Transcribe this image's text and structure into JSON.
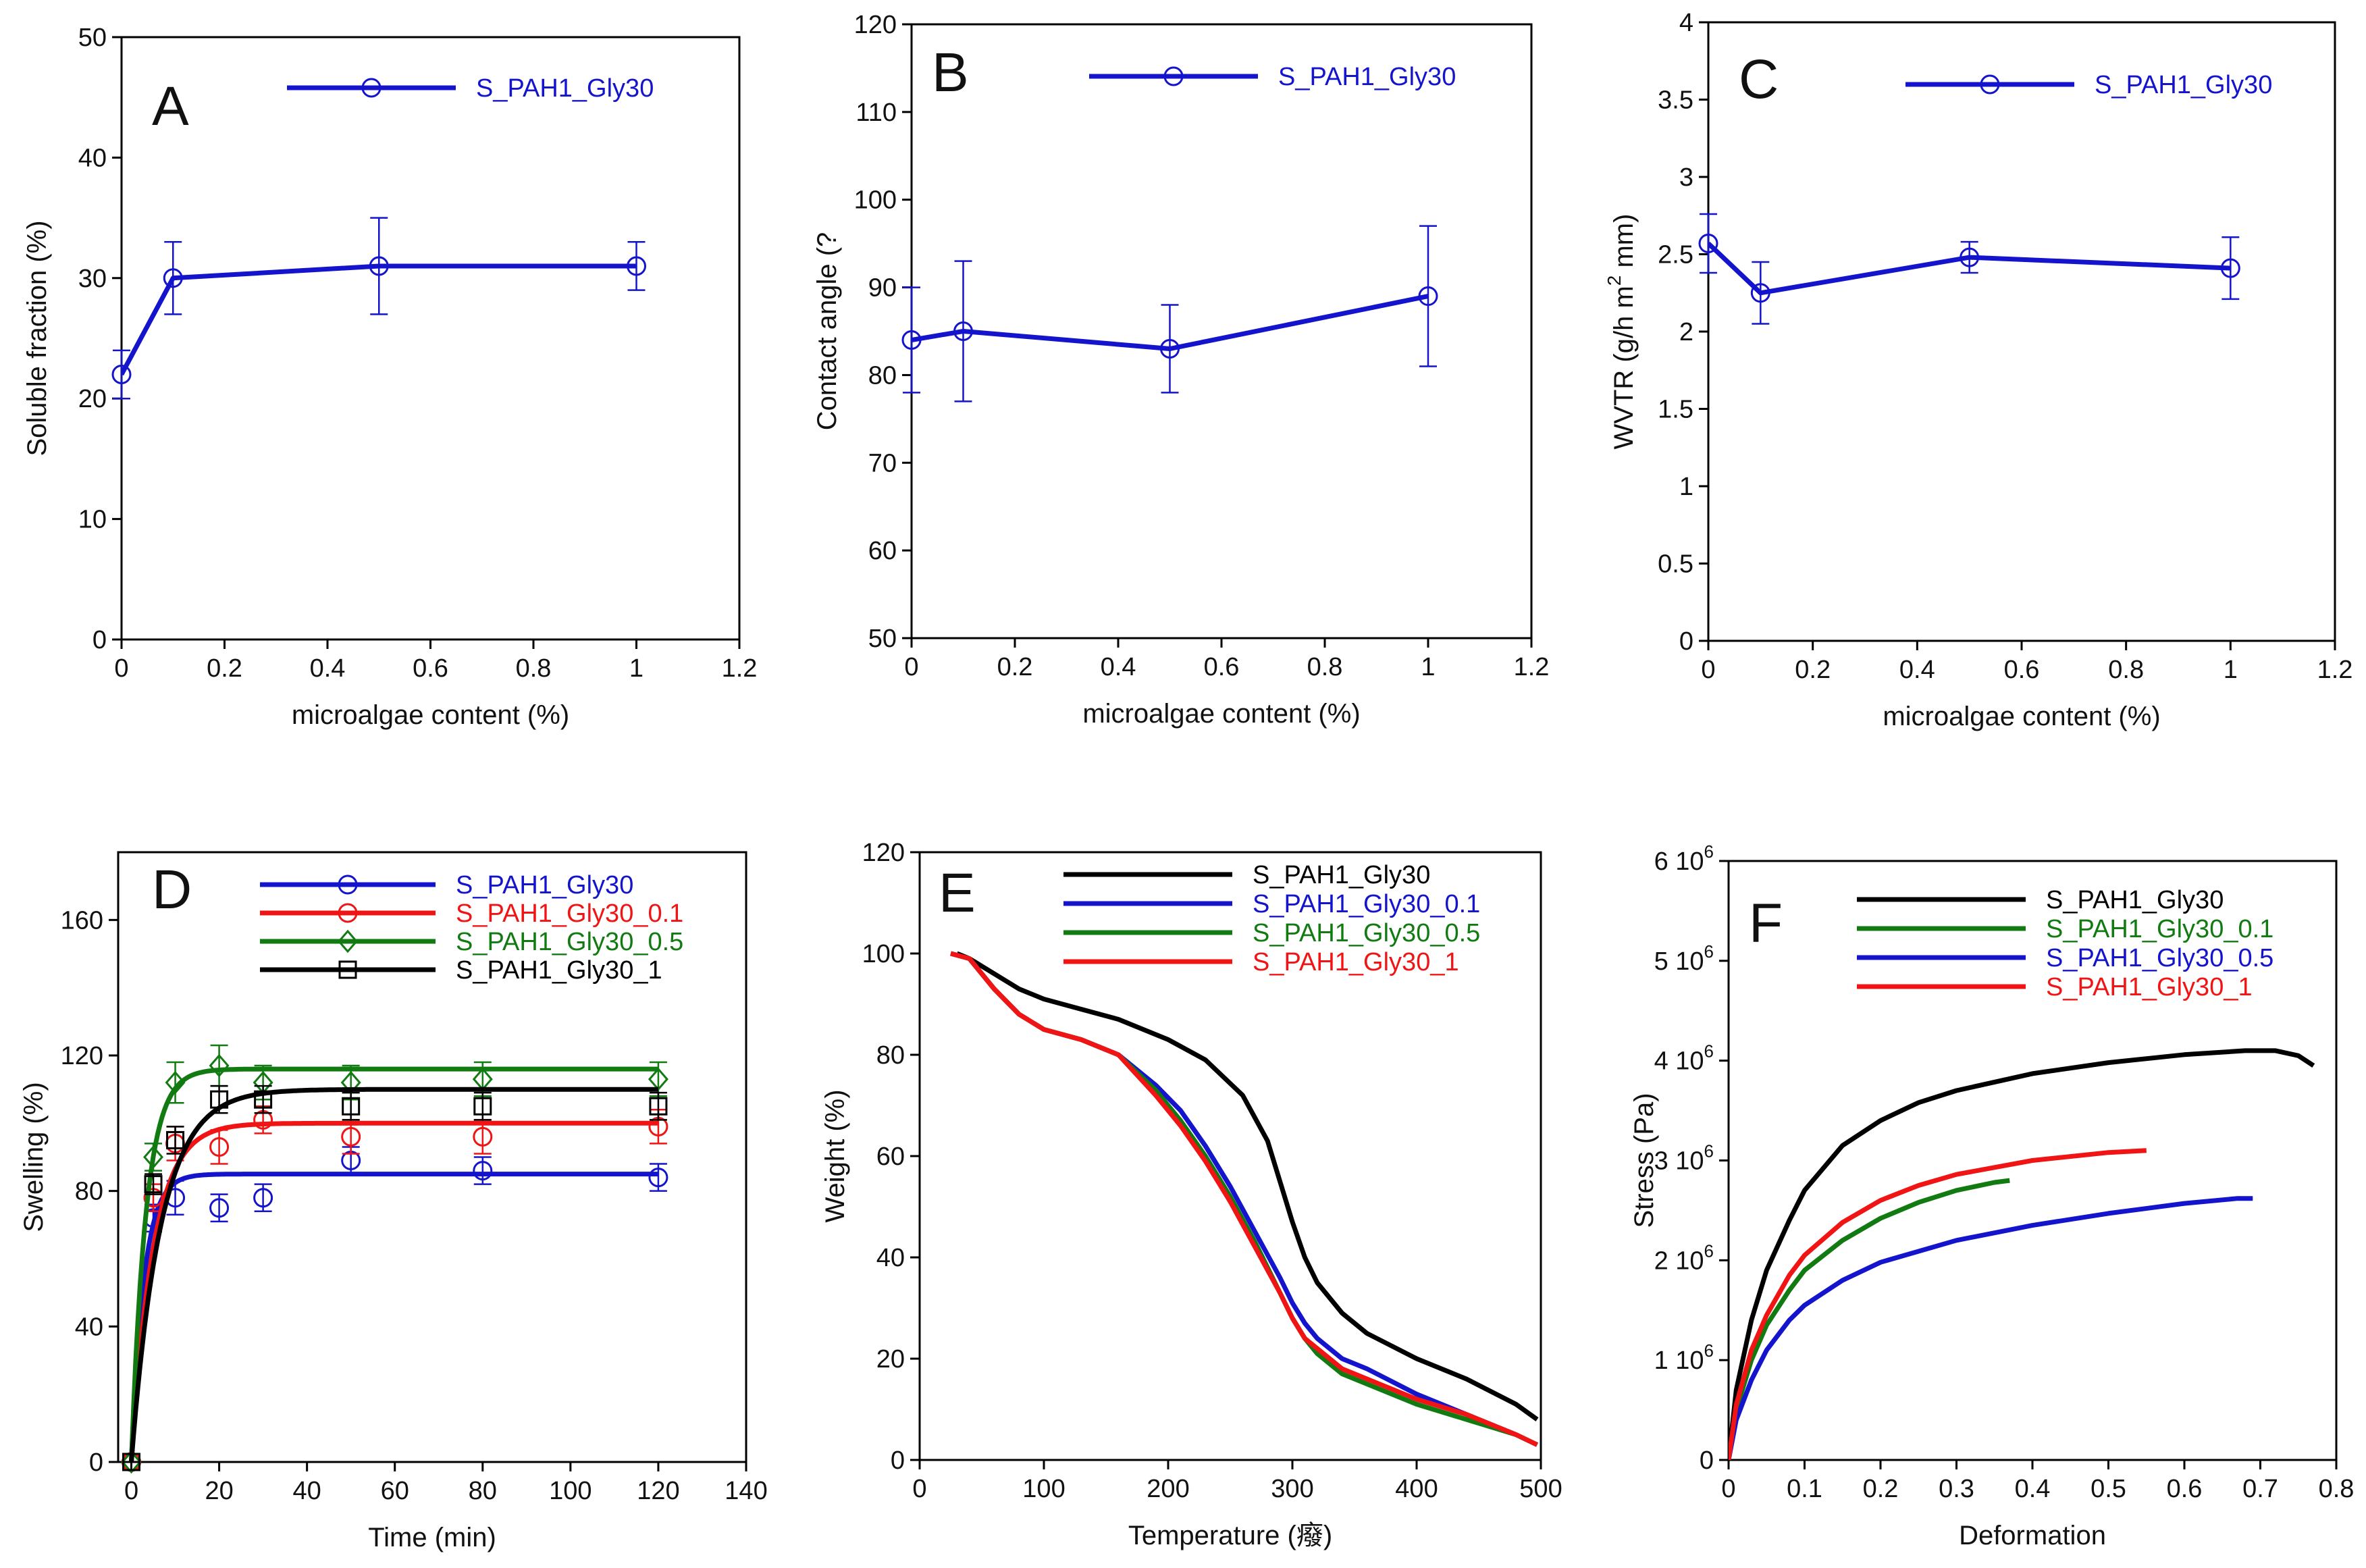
{
  "figure": {
    "panels": [
      "A",
      "B",
      "C",
      "D",
      "E",
      "F"
    ]
  },
  "colors": {
    "blue": "#1414cc",
    "red": "#f01414",
    "green": "#117a11",
    "black": "#000000"
  },
  "chart_data": [
    {
      "id": "A",
      "type": "line",
      "panel_label": "A",
      "xlabel": "microalgae content (%)",
      "ylabel": "Soluble fraction (%)",
      "xlim": [
        0,
        1.2
      ],
      "ylim": [
        0,
        50
      ],
      "xticks": [
        0,
        0.2,
        0.4,
        0.6,
        0.8,
        1,
        1.2
      ],
      "xtick_labels": [
        "0",
        "0.2",
        "0.4",
        "0.6",
        "0.8",
        "1",
        "1.2"
      ],
      "yticks": [
        0,
        10,
        20,
        30,
        40,
        50
      ],
      "ytick_labels": [
        "0",
        "10",
        "20",
        "30",
        "40",
        "50"
      ],
      "legend_position": "top-right",
      "series": [
        {
          "name": "S_PAH1_Gly30",
          "color": "#1414cc",
          "marker": "circle",
          "x": [
            0,
            0.1,
            0.5,
            1
          ],
          "y": [
            22,
            30,
            31,
            31
          ],
          "err": [
            2,
            3,
            4,
            2
          ]
        }
      ]
    },
    {
      "id": "B",
      "type": "line",
      "panel_label": "B",
      "xlabel": "microalgae content (%)",
      "ylabel": "Contact angle (?",
      "xlim": [
        0,
        1.2
      ],
      "ylim": [
        50,
        120
      ],
      "xticks": [
        0,
        0.2,
        0.4,
        0.6,
        0.8,
        1,
        1.2
      ],
      "xtick_labels": [
        "0",
        "0.2",
        "0.4",
        "0.6",
        "0.8",
        "1",
        "1.2"
      ],
      "yticks": [
        50,
        60,
        70,
        80,
        90,
        100,
        110,
        120
      ],
      "ytick_labels": [
        "50",
        "60",
        "70",
        "80",
        "90",
        "100",
        "110",
        "120"
      ],
      "legend_position": "top-right",
      "series": [
        {
          "name": "S_PAH1_Gly30",
          "color": "#1414cc",
          "marker": "circle",
          "x": [
            0,
            0.1,
            0.5,
            1
          ],
          "y": [
            84,
            85,
            83,
            89
          ],
          "err": [
            6,
            8,
            5,
            8
          ]
        }
      ]
    },
    {
      "id": "C",
      "type": "line",
      "panel_label": "C",
      "xlabel": "microalgae content (%)",
      "ylabel": "WVTR (g/h m",
      "ylabel_sup": "2",
      "ylabel_tail": " mm)",
      "xlim": [
        0,
        1.2
      ],
      "ylim": [
        0,
        4
      ],
      "xticks": [
        0,
        0.2,
        0.4,
        0.6,
        0.8,
        1,
        1.2
      ],
      "xtick_labels": [
        "0",
        "0.2",
        "0.4",
        "0.6",
        "0.8",
        "1",
        "1.2"
      ],
      "yticks": [
        0,
        0.5,
        1,
        1.5,
        2,
        2.5,
        3,
        3.5,
        4
      ],
      "ytick_labels": [
        "0",
        "0.5",
        "1",
        "1.5",
        "2",
        "2.5",
        "3",
        "3.5",
        "4"
      ],
      "legend_position": "top-right",
      "series": [
        {
          "name": "S_PAH1_Gly30",
          "color": "#1414cc",
          "marker": "circle",
          "x": [
            0,
            0.1,
            0.5,
            1
          ],
          "y": [
            2.57,
            2.25,
            2.48,
            2.41
          ],
          "err": [
            0.19,
            0.2,
            0.1,
            0.2
          ]
        }
      ]
    },
    {
      "id": "D",
      "type": "scatter",
      "panel_label": "D",
      "xlabel": "Time (min)",
      "ylabel": "Swelling (%)",
      "xlim": [
        -3,
        140
      ],
      "ylim": [
        0,
        180
      ],
      "xticks": [
        0,
        20,
        40,
        60,
        80,
        100,
        120,
        140
      ],
      "xtick_labels": [
        "0",
        "20",
        "40",
        "60",
        "80",
        "100",
        "120",
        "140"
      ],
      "yticks": [
        0,
        40,
        80,
        120,
        160
      ],
      "ytick_labels": [
        "0",
        "40",
        "80",
        "120",
        "160"
      ],
      "legend_position": "top-right",
      "series": [
        {
          "name": "S_PAH1_Gly30",
          "color": "#1414cc",
          "marker": "circle",
          "x": [
            0,
            5,
            10,
            20,
            30,
            50,
            80,
            120
          ],
          "y": [
            0,
            72,
            78,
            75,
            78,
            89,
            86,
            84
          ],
          "err": [
            0,
            4,
            5,
            4,
            4,
            4,
            4,
            4
          ],
          "fit": {
            "ymax": 85,
            "k": 0.35
          }
        },
        {
          "name": "S_PAH1_Gly30_0.1",
          "color": "#f01414",
          "marker": "circle",
          "x": [
            0,
            5,
            10,
            20,
            30,
            50,
            80,
            120
          ],
          "y": [
            0,
            78,
            94,
            93,
            101,
            96,
            96,
            99
          ],
          "err": [
            0,
            4,
            5,
            5,
            4,
            5,
            5,
            5
          ],
          "fit": {
            "ymax": 100,
            "k": 0.2
          }
        },
        {
          "name": "S_PAH1_Gly30_0.5",
          "color": "#117a11",
          "marker": "diamond",
          "x": [
            0,
            5,
            10,
            20,
            30,
            50,
            80,
            120
          ],
          "y": [
            0,
            90,
            112,
            117,
            112,
            112,
            113,
            113
          ],
          "err": [
            0,
            4,
            6,
            6,
            5,
            5,
            5,
            5
          ],
          "fit": {
            "ymax": 116,
            "k": 0.3
          }
        },
        {
          "name": "S_PAH1_Gly30_1",
          "color": "#000000",
          "marker": "square",
          "x": [
            0,
            5,
            10,
            20,
            30,
            50,
            80,
            120
          ],
          "y": [
            0,
            82,
            95,
            107,
            107,
            105,
            105,
            105
          ],
          "err": [
            0,
            3,
            4,
            4,
            4,
            4,
            4,
            4
          ],
          "fit": {
            "ymax": 110,
            "k": 0.15
          }
        }
      ]
    },
    {
      "id": "E",
      "type": "line",
      "panel_label": "E",
      "xlabel": "Temperature (癈)",
      "ylabel": "Weight (%)",
      "xlim": [
        0,
        500
      ],
      "ylim": [
        0,
        120
      ],
      "xticks": [
        0,
        100,
        200,
        300,
        400,
        500
      ],
      "xtick_labels": [
        "0",
        "100",
        "200",
        "300",
        "400",
        "500"
      ],
      "yticks": [
        0,
        20,
        40,
        60,
        80,
        100,
        120
      ],
      "ytick_labels": [
        "0",
        "20",
        "40",
        "60",
        "80",
        "100",
        "120"
      ],
      "legend_position": "top-right",
      "series": [
        {
          "name": "S_PAH1_Gly30",
          "color": "#000000",
          "x": [
            30,
            40,
            60,
            80,
            100,
            130,
            160,
            200,
            230,
            260,
            280,
            290,
            300,
            310,
            320,
            340,
            360,
            400,
            440,
            480,
            497
          ],
          "y": [
            100,
            99,
            96,
            93,
            91,
            89,
            87,
            83,
            79,
            72,
            63,
            55,
            47,
            40,
            35,
            29,
            25,
            20,
            16,
            11,
            8
          ]
        },
        {
          "name": "S_PAH1_Gly30_0.1",
          "color": "#1414cc",
          "x": [
            25,
            40,
            60,
            80,
            100,
            130,
            160,
            190,
            210,
            230,
            250,
            270,
            290,
            300,
            310,
            320,
            340,
            360,
            400,
            440,
            480,
            497
          ],
          "y": [
            100,
            99,
            93,
            88,
            85,
            83,
            80,
            74,
            69,
            62,
            54,
            45,
            36,
            31,
            27,
            24,
            20,
            18,
            13,
            9,
            5,
            3
          ]
        },
        {
          "name": "S_PAH1_Gly30_0.5",
          "color": "#117a11",
          "x": [
            25,
            40,
            60,
            80,
            100,
            130,
            160,
            190,
            210,
            230,
            250,
            270,
            290,
            300,
            310,
            320,
            340,
            360,
            400,
            440,
            480,
            497
          ],
          "y": [
            100,
            99,
            93,
            88,
            85,
            83,
            80,
            73,
            67,
            60,
            52,
            43,
            33,
            28,
            24,
            21,
            17,
            15,
            11,
            8,
            5,
            3
          ]
        },
        {
          "name": "S_PAH1_Gly30_1",
          "color": "#f01414",
          "x": [
            25,
            40,
            60,
            80,
            100,
            130,
            160,
            190,
            210,
            230,
            250,
            270,
            290,
            300,
            310,
            320,
            340,
            360,
            400,
            440,
            480,
            497
          ],
          "y": [
            100,
            99,
            93,
            88,
            85,
            83,
            80,
            72,
            66,
            59,
            51,
            42,
            33,
            28,
            24,
            22,
            18,
            16,
            12,
            9,
            5,
            3
          ]
        }
      ]
    },
    {
      "id": "F",
      "type": "line",
      "panel_label": "F",
      "xlabel": "Deformation",
      "ylabel": "Stress (Pa)",
      "xlim": [
        0,
        0.8
      ],
      "ylim": [
        0,
        6
      ],
      "xticks": [
        0,
        0.1,
        0.2,
        0.3,
        0.4,
        0.5,
        0.6,
        0.7,
        0.8
      ],
      "xtick_labels": [
        "0",
        "0.1",
        "0.2",
        "0.3",
        "0.4",
        "0.5",
        "0.6",
        "0.7",
        "0.8"
      ],
      "yticks": [
        0,
        1,
        2,
        3,
        4,
        5,
        6
      ],
      "ytick_labels": [
        "0",
        "1 10",
        "2 10",
        "3 10",
        "4 10",
        "5 10",
        "6 10"
      ],
      "ytick_exponent": "6",
      "legend_position": "top-right",
      "series": [
        {
          "name": "S_PAH1_Gly30",
          "color": "#000000",
          "x": [
            0,
            0.01,
            0.03,
            0.05,
            0.08,
            0.1,
            0.15,
            0.2,
            0.25,
            0.3,
            0.4,
            0.5,
            0.6,
            0.68,
            0.72,
            0.75,
            0.77
          ],
          "y": [
            0,
            0.7,
            1.4,
            1.9,
            2.4,
            2.7,
            3.15,
            3.4,
            3.58,
            3.7,
            3.87,
            3.98,
            4.06,
            4.1,
            4.1,
            4.05,
            3.95
          ]
        },
        {
          "name": "S_PAH1_Gly30_0.1",
          "color": "#117a11",
          "x": [
            0,
            0.01,
            0.03,
            0.05,
            0.08,
            0.1,
            0.15,
            0.2,
            0.25,
            0.3,
            0.35,
            0.37
          ],
          "y": [
            0,
            0.5,
            1.0,
            1.35,
            1.7,
            1.9,
            2.2,
            2.42,
            2.58,
            2.7,
            2.78,
            2.8
          ]
        },
        {
          "name": "S_PAH1_Gly30_0.5",
          "color": "#1414cc",
          "x": [
            0,
            0.01,
            0.03,
            0.05,
            0.08,
            0.1,
            0.15,
            0.2,
            0.3,
            0.4,
            0.5,
            0.6,
            0.67,
            0.69
          ],
          "y": [
            0,
            0.4,
            0.8,
            1.1,
            1.4,
            1.55,
            1.8,
            1.98,
            2.2,
            2.35,
            2.47,
            2.57,
            2.62,
            2.62
          ]
        },
        {
          "name": "S_PAH1_Gly30_1",
          "color": "#f01414",
          "x": [
            0,
            0.01,
            0.03,
            0.05,
            0.08,
            0.1,
            0.15,
            0.2,
            0.25,
            0.3,
            0.4,
            0.5,
            0.55
          ],
          "y": [
            0,
            0.55,
            1.1,
            1.45,
            1.85,
            2.05,
            2.38,
            2.6,
            2.75,
            2.86,
            3.0,
            3.08,
            3.1
          ]
        }
      ]
    }
  ]
}
